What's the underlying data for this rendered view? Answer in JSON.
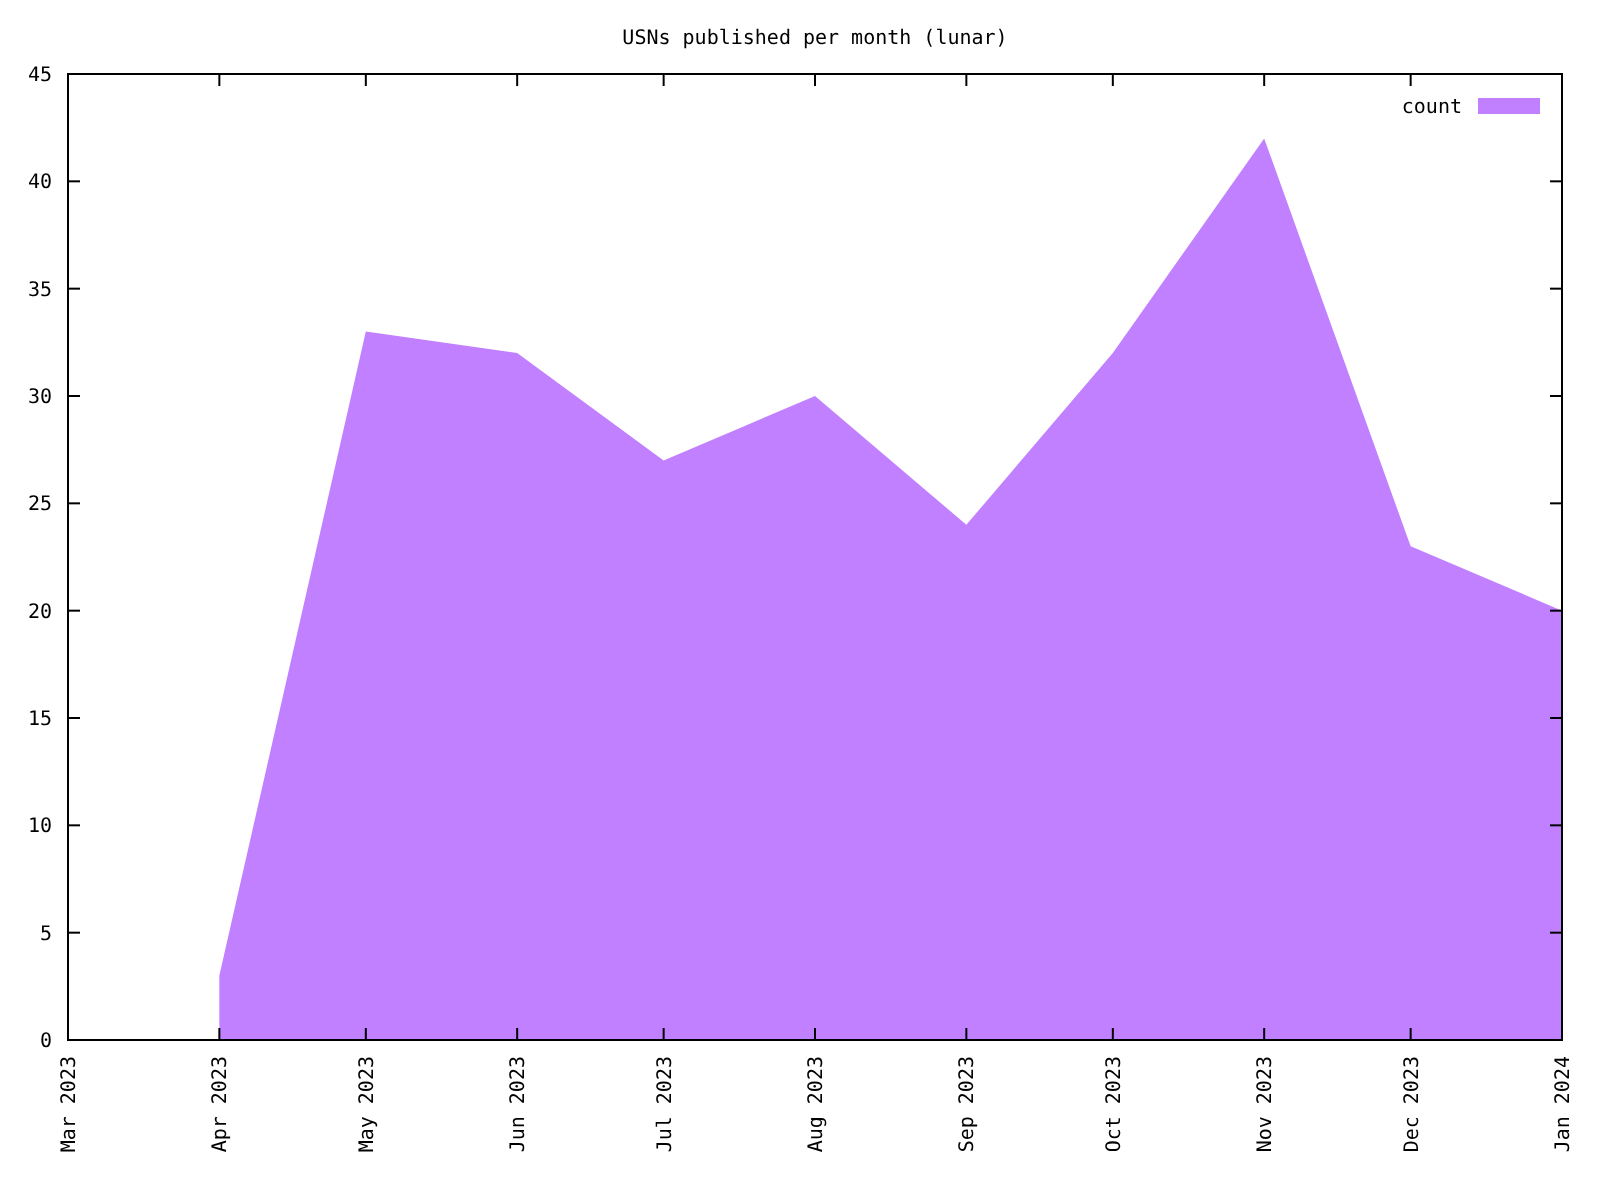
{
  "chart_data": {
    "type": "area",
    "title": "USNs published per month (lunar)",
    "x": [
      "2023-04",
      "2023-05",
      "2023-06",
      "2023-07",
      "2023-08",
      "2023-09",
      "2023-10",
      "2023-11",
      "2023-12",
      "2024-01"
    ],
    "series": [
      {
        "name": "count",
        "color": "#c080ff",
        "values": [
          3,
          33,
          32,
          27,
          30,
          24,
          32,
          42,
          23,
          20
        ]
      }
    ],
    "xlim": [
      "2023-03",
      "2024-01"
    ],
    "xticks": [
      {
        "value": "2023-03",
        "label": "Mar 2023"
      },
      {
        "value": "2023-04",
        "label": "Apr 2023"
      },
      {
        "value": "2023-05",
        "label": "May 2023"
      },
      {
        "value": "2023-06",
        "label": "Jun 2023"
      },
      {
        "value": "2023-07",
        "label": "Jul 2023"
      },
      {
        "value": "2023-08",
        "label": "Aug 2023"
      },
      {
        "value": "2023-09",
        "label": "Sep 2023"
      },
      {
        "value": "2023-10",
        "label": "Oct 2023"
      },
      {
        "value": "2023-11",
        "label": "Nov 2023"
      },
      {
        "value": "2023-12",
        "label": "Dec 2023"
      },
      {
        "value": "2024-01",
        "label": "Jan 2024"
      }
    ],
    "ylim": [
      0,
      45
    ],
    "yticks": [
      0,
      5,
      10,
      15,
      20,
      25,
      30,
      35,
      40,
      45
    ],
    "legend": "top right"
  }
}
